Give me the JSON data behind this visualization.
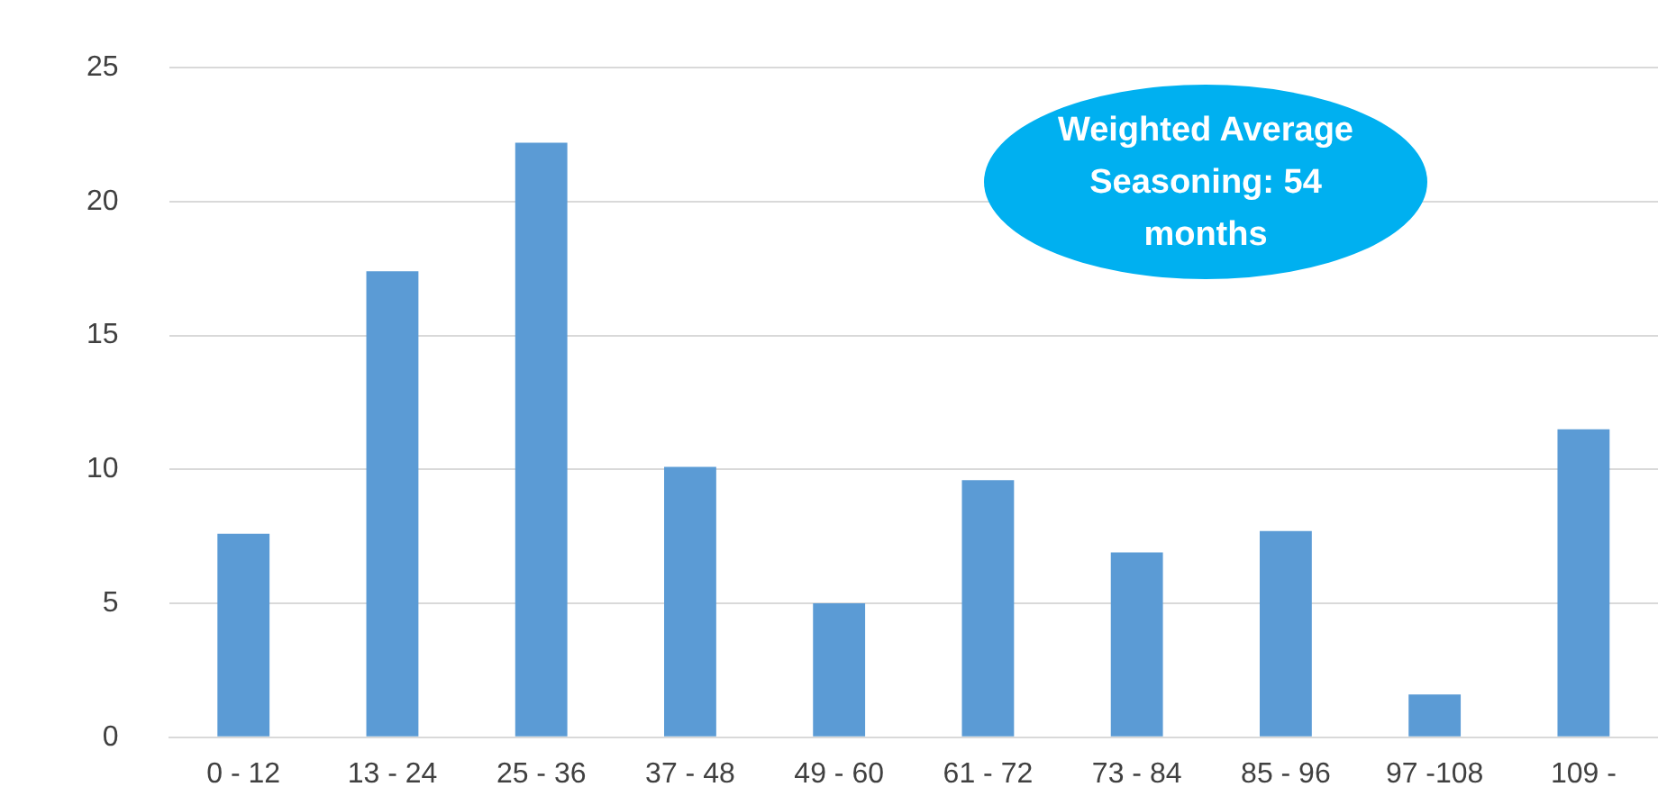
{
  "chart_data": {
    "type": "bar",
    "categories": [
      "0 - 12",
      "13 - 24",
      "25 - 36",
      "37 - 48",
      "49 - 60",
      "61 - 72",
      "73 - 84",
      "85 - 96",
      "97 -108",
      "109 -"
    ],
    "values": [
      7.6,
      17.4,
      22.2,
      10.1,
      5.0,
      9.6,
      6.9,
      7.7,
      1.6,
      11.5
    ],
    "color": "#5b9bd5",
    "ylim": [
      0,
      25
    ],
    "yticks": [
      0,
      5,
      10,
      15,
      20,
      25
    ],
    "grid": "y",
    "legend": false,
    "annotations": [
      "Weighted Average Seasoning: 54 months"
    ]
  }
}
